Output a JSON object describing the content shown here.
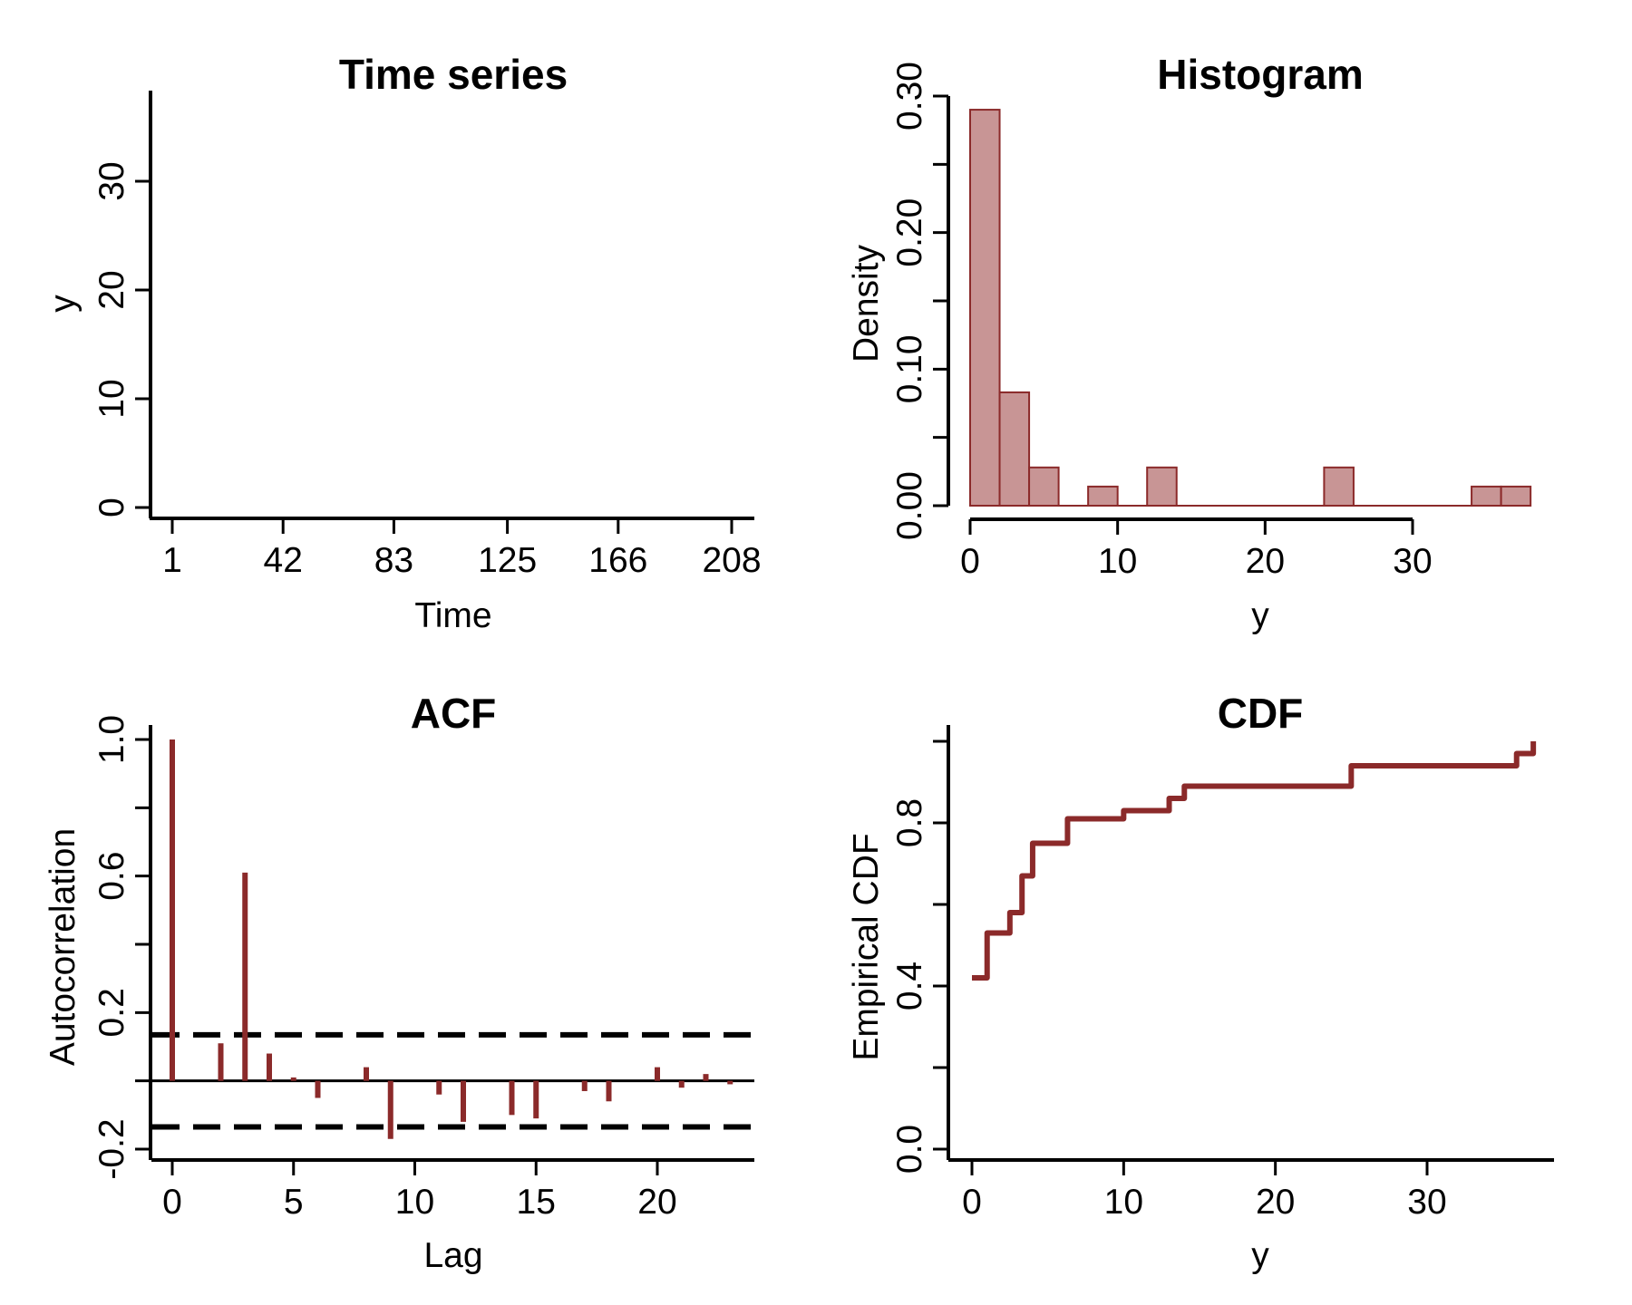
{
  "colors": {
    "accent": "#8b2a2a",
    "hist_fill": "#c89595",
    "axis": "#000000",
    "background": "#ffffff"
  },
  "chart_data": [
    {
      "id": "time-series",
      "type": "line",
      "title": "Time series",
      "xlabel": "Time",
      "ylabel": "y",
      "xticks": [
        "1",
        "42",
        "83",
        "125",
        "166",
        "208"
      ],
      "xtick_values": [
        1,
        42,
        83,
        125,
        166,
        208
      ],
      "xlim": [
        1,
        208
      ],
      "yticks": [
        "0",
        "10",
        "20",
        "30"
      ],
      "ytick_values": [
        0,
        10,
        20,
        30
      ],
      "ylim": [
        0,
        38
      ],
      "series": [],
      "grid": false
    },
    {
      "id": "histogram",
      "type": "bar",
      "title": "Histogram",
      "xlabel": "y",
      "ylabel": "Density",
      "xticks": [
        "0",
        "10",
        "20",
        "30"
      ],
      "xtick_values": [
        0,
        10,
        20,
        30
      ],
      "xlim": [
        0,
        38
      ],
      "yticks": [
        "0.00",
        "0.10",
        "0.20",
        "0.30"
      ],
      "ytick_values": [
        0.0,
        0.1,
        0.2,
        0.3
      ],
      "ylim": [
        0,
        0.3
      ],
      "bins": [
        {
          "start": 0,
          "end": 2,
          "density": 0.29
        },
        {
          "start": 2,
          "end": 4,
          "density": 0.083
        },
        {
          "start": 4,
          "end": 6,
          "density": 0.028
        },
        {
          "start": 6,
          "end": 8,
          "density": 0.0
        },
        {
          "start": 8,
          "end": 10,
          "density": 0.014
        },
        {
          "start": 10,
          "end": 12,
          "density": 0.0
        },
        {
          "start": 12,
          "end": 14,
          "density": 0.028
        },
        {
          "start": 14,
          "end": 16,
          "density": 0.0
        },
        {
          "start": 16,
          "end": 18,
          "density": 0.0
        },
        {
          "start": 18,
          "end": 20,
          "density": 0.0
        },
        {
          "start": 20,
          "end": 22,
          "density": 0.0
        },
        {
          "start": 22,
          "end": 24,
          "density": 0.0
        },
        {
          "start": 24,
          "end": 26,
          "density": 0.028
        },
        {
          "start": 26,
          "end": 28,
          "density": 0.0
        },
        {
          "start": 28,
          "end": 30,
          "density": 0.0
        },
        {
          "start": 30,
          "end": 32,
          "density": 0.0
        },
        {
          "start": 32,
          "end": 34,
          "density": 0.0
        },
        {
          "start": 34,
          "end": 36,
          "density": 0.014
        },
        {
          "start": 36,
          "end": 38,
          "density": 0.014
        }
      ],
      "grid": false
    },
    {
      "id": "acf",
      "type": "bar",
      "title": "ACF",
      "xlabel": "Lag",
      "ylabel": "Autocorrelation",
      "xticks": [
        "0",
        "5",
        "10",
        "15",
        "20"
      ],
      "xtick_values": [
        0,
        5,
        10,
        15,
        20
      ],
      "xlim": [
        -1,
        24
      ],
      "yticks": [
        "-0.2",
        "0.2",
        "0.6",
        "1.0"
      ],
      "ytick_values": [
        -0.2,
        0.2,
        0.6,
        1.0
      ],
      "ylim": [
        -0.2,
        1.0
      ],
      "lags": [
        0,
        2,
        3,
        4,
        5,
        6,
        8,
        9,
        11,
        12,
        14,
        15,
        17,
        18,
        20,
        21,
        22,
        23
      ],
      "values": [
        1.0,
        0.11,
        0.61,
        0.08,
        0.01,
        -0.05,
        0.04,
        -0.17,
        -0.04,
        -0.12,
        -0.1,
        -0.11,
        -0.03,
        -0.06,
        0.04,
        -0.02,
        0.02,
        -0.01
      ],
      "confidence_band": [
        -0.135,
        0.135
      ],
      "grid": false
    },
    {
      "id": "cdf",
      "type": "line",
      "title": "CDF",
      "xlabel": "y",
      "ylabel": "Empirical CDF",
      "xticks": [
        "0",
        "10",
        "20",
        "30"
      ],
      "xtick_values": [
        0,
        10,
        20,
        30
      ],
      "xlim": [
        -1,
        38
      ],
      "yticks": [
        "0.0",
        "0.4",
        "0.8"
      ],
      "ytick_values": [
        0.0,
        0.4,
        0.8
      ],
      "extra_ytick_values": [
        0.2,
        0.6,
        1.0
      ],
      "ylim": [
        0.0,
        1.0
      ],
      "steps": [
        {
          "x": 0,
          "y": 0.42
        },
        {
          "x": 1,
          "y": 0.53
        },
        {
          "x": 2.5,
          "y": 0.58
        },
        {
          "x": 3.3,
          "y": 0.67
        },
        {
          "x": 4,
          "y": 0.75
        },
        {
          "x": 6.3,
          "y": 0.81
        },
        {
          "x": 10,
          "y": 0.83
        },
        {
          "x": 13,
          "y": 0.86
        },
        {
          "x": 14,
          "y": 0.89
        },
        {
          "x": 25,
          "y": 0.94
        },
        {
          "x": 35.9,
          "y": 0.97
        },
        {
          "x": 37,
          "y": 1.0
        }
      ],
      "grid": false
    }
  ]
}
